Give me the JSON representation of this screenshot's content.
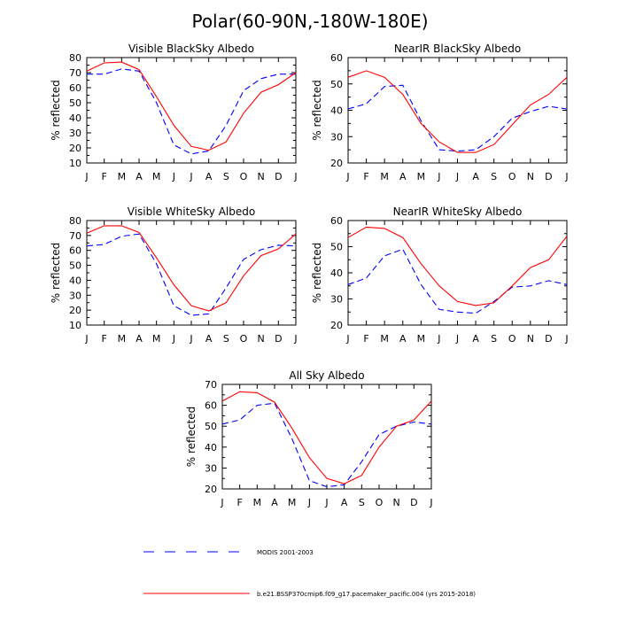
{
  "title": "Polar(60-90N,-180W-180E)",
  "legend": {
    "entries": [
      {
        "label": "MODIS 2001-2003",
        "style": "dashed",
        "color": "#0000ff"
      },
      {
        "label": "b.e21.BSSP370cmip6.f09_g17.pacemaker_pacific.004 (yrs 2015-2018)",
        "style": "solid",
        "color": "#ff0000"
      }
    ]
  },
  "chart_data": [
    {
      "type": "line",
      "title": "Visible BlackSky Albedo",
      "ylabel": "% reflected",
      "categories": [
        "J",
        "F",
        "M",
        "A",
        "M",
        "J",
        "J",
        "A",
        "S",
        "O",
        "N",
        "D",
        "J"
      ],
      "ylim": [
        10,
        80
      ],
      "yticks": [
        10,
        20,
        30,
        40,
        50,
        60,
        70,
        80
      ],
      "series": [
        {
          "name": "MODIS 2001-2003",
          "style": "dashed",
          "color": "#0000ff",
          "values": [
            69,
            69,
            72.5,
            71,
            50,
            22,
            16,
            18,
            35,
            58,
            66,
            69,
            69
          ]
        },
        {
          "name": "b.e21.BSSP370cmip6.f09_g17.pacemaker_pacific.004 (yrs 2015-2018)",
          "style": "solid",
          "color": "#ff0000",
          "values": [
            71,
            76.5,
            77,
            72,
            54,
            35,
            21,
            18.5,
            24,
            43,
            57,
            62,
            70
          ]
        }
      ]
    },
    {
      "type": "line",
      "title": "NearIR BlackSky Albedo",
      "ylabel": "% reflected",
      "categories": [
        "J",
        "F",
        "M",
        "A",
        "M",
        "J",
        "J",
        "A",
        "S",
        "O",
        "N",
        "D",
        "J"
      ],
      "ylim": [
        20,
        60
      ],
      "yticks": [
        20,
        30,
        40,
        50,
        60
      ],
      "series": [
        {
          "name": "MODIS 2001-2003",
          "style": "dashed",
          "color": "#0000ff",
          "values": [
            40.5,
            42.5,
            49,
            49.5,
            36,
            25,
            24.5,
            25,
            30,
            37,
            39.5,
            41.5,
            40.5
          ]
        },
        {
          "name": "b.e21.BSSP370cmip6.f09_g17.pacemaker_pacific.004 (yrs 2015-2018)",
          "style": "solid",
          "color": "#ff0000",
          "values": [
            52.5,
            55,
            52.5,
            46,
            35,
            28,
            24,
            24,
            27,
            34.5,
            42,
            46,
            52.5
          ]
        }
      ]
    },
    {
      "type": "line",
      "title": "Visible WhiteSky Albedo",
      "ylabel": "% reflected",
      "categories": [
        "J",
        "F",
        "M",
        "A",
        "M",
        "J",
        "J",
        "A",
        "S",
        "O",
        "N",
        "D",
        "J"
      ],
      "ylim": [
        10,
        80
      ],
      "yticks": [
        10,
        20,
        30,
        40,
        50,
        60,
        70,
        80
      ],
      "series": [
        {
          "name": "MODIS 2001-2003",
          "style": "dashed",
          "color": "#0000ff",
          "values": [
            63,
            64,
            69.5,
            71,
            51,
            23,
            16.5,
            17.5,
            35,
            54,
            60.5,
            63.5,
            63
          ]
        },
        {
          "name": "b.e21.BSSP370cmip6.f09_g17.pacemaker_pacific.004 (yrs 2015-2018)",
          "style": "solid",
          "color": "#ff0000",
          "values": [
            71.5,
            76.5,
            76.5,
            72,
            55,
            37,
            23,
            19.5,
            25,
            43,
            56.5,
            61,
            71
          ]
        }
      ]
    },
    {
      "type": "line",
      "title": "NearIR WhiteSky Albedo",
      "ylabel": "% reflected",
      "categories": [
        "J",
        "F",
        "M",
        "A",
        "M",
        "J",
        "J",
        "A",
        "S",
        "O",
        "N",
        "D",
        "J"
      ],
      "ylim": [
        20,
        60
      ],
      "yticks": [
        20,
        30,
        40,
        50,
        60
      ],
      "series": [
        {
          "name": "MODIS 2001-2003",
          "style": "dashed",
          "color": "#0000ff",
          "values": [
            35.5,
            38,
            46.5,
            49,
            35.5,
            26,
            25,
            24.5,
            29,
            34.5,
            35,
            37,
            35.5
          ]
        },
        {
          "name": "b.e21.BSSP370cmip6.f09_g17.pacemaker_pacific.004 (yrs 2015-2018)",
          "style": "solid",
          "color": "#ff0000",
          "values": [
            53.5,
            57.5,
            57,
            53.5,
            43.5,
            35,
            29,
            27.5,
            28.5,
            35,
            42,
            45,
            54
          ]
        }
      ]
    },
    {
      "type": "line",
      "title": "All Sky Albedo",
      "ylabel": "% reflected",
      "categories": [
        "J",
        "F",
        "M",
        "A",
        "M",
        "J",
        "J",
        "A",
        "S",
        "O",
        "N",
        "D",
        "J"
      ],
      "ylim": [
        20,
        70
      ],
      "yticks": [
        20,
        30,
        40,
        50,
        60,
        70
      ],
      "series": [
        {
          "name": "MODIS 2001-2003",
          "style": "dashed",
          "color": "#0000ff",
          "values": [
            51,
            53,
            60,
            61,
            44,
            24,
            21,
            22,
            33,
            46,
            50,
            52,
            51
          ]
        },
        {
          "name": "b.e21.BSSP370cmip6.f09_g17.pacemaker_pacific.004 (yrs 2015-2018)",
          "style": "solid",
          "color": "#ff0000",
          "values": [
            62,
            66.5,
            66,
            61.5,
            49,
            35,
            25,
            22.5,
            26.5,
            40,
            50,
            53,
            62
          ]
        }
      ]
    }
  ]
}
